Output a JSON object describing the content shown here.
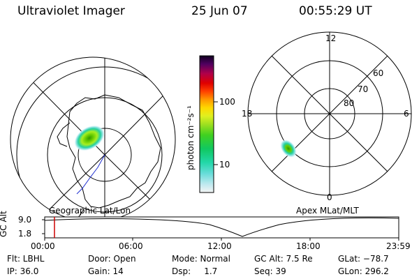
{
  "header": {
    "instrument": "Ultraviolet Imager",
    "date": "25 Jun 07",
    "time": "00:55:29 UT"
  },
  "colorbar": {
    "unit_label": "photon cm⁻²s⁻¹",
    "ticks": [
      "100",
      "10"
    ]
  },
  "mlt_plot": {
    "mlt_labels": {
      "top": "12",
      "left": "18",
      "right": "6",
      "bottom": "0"
    },
    "lat_labels": [
      "60",
      "70",
      "80"
    ]
  },
  "timeline": {
    "left_label": "Geographic Lat/Lon",
    "right_label": "Apex MLat/MLT",
    "y_axis_title": "GC Alt",
    "y_ticks": [
      "9.0",
      "1.8"
    ],
    "x_ticks": [
      "00:00",
      "06:00",
      "12:00",
      "18:00",
      "23:59"
    ],
    "current_marker_color": "#cc0000"
  },
  "info": {
    "filter": "Flt: LBHL",
    "ip": "IP: 36.0",
    "door": "Door: Open",
    "gain": "Gain: 14",
    "mode": "Mode: Normal",
    "dsp": "Dsp:     1.7",
    "gc_alt": "GC Alt: 7.5 Re",
    "seq": "Seq: 39",
    "glat": "GLat: −78.7",
    "glon": "GLon: 296.2"
  }
}
